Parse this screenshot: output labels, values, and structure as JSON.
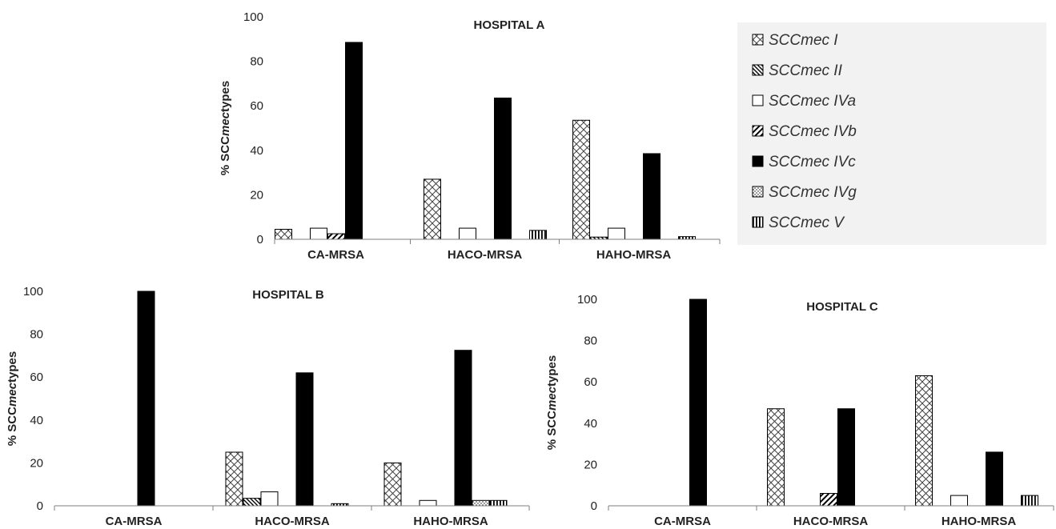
{
  "ylabel": {
    "prefix": "% SCC",
    "italic": "mec",
    "suffix": "types"
  },
  "legend": {
    "items": [
      {
        "label": "SCCmec I",
        "pattern": "wave"
      },
      {
        "label": "SCCmec II",
        "pattern": "diag-dense"
      },
      {
        "label": "SCCmec IVa",
        "pattern": "white"
      },
      {
        "label": "SCCmec IVb",
        "pattern": "diag-wide"
      },
      {
        "label": "SCCmec IVc",
        "pattern": "black"
      },
      {
        "label": "SCCmec IVg",
        "pattern": "dots"
      },
      {
        "label": "SCCmec V",
        "pattern": "vlines"
      }
    ]
  },
  "chart_data": [
    {
      "type": "bar",
      "title": "HOSPITAL A",
      "ylabel": "% SCCmec types",
      "ylim": [
        0,
        100
      ],
      "yticks": [
        0,
        20,
        40,
        60,
        80,
        100
      ],
      "categories": [
        "CA-MRSA",
        "HACO-MRSA",
        "HAHO-MRSA"
      ],
      "series": [
        {
          "name": "SCCmec I",
          "values": [
            4.5,
            27,
            53.5
          ]
        },
        {
          "name": "SCCmec II",
          "values": [
            0,
            0,
            1
          ]
        },
        {
          "name": "SCCmec IVa",
          "values": [
            5,
            5,
            5
          ]
        },
        {
          "name": "SCCmec IVb",
          "values": [
            2.5,
            0,
            0
          ]
        },
        {
          "name": "SCCmec IVc",
          "values": [
            88.5,
            63.5,
            38.5
          ]
        },
        {
          "name": "SCCmec IVg",
          "values": [
            0,
            0,
            0
          ]
        },
        {
          "name": "SCCmec V",
          "values": [
            0,
            4,
            1.2
          ]
        }
      ]
    },
    {
      "type": "bar",
      "title": "HOSPITAL B",
      "ylabel": "% SCCmec types",
      "ylim": [
        0,
        100
      ],
      "yticks": [
        0,
        20,
        40,
        60,
        80,
        100
      ],
      "categories": [
        "CA-MRSA",
        "HACO-MRSA",
        "HAHO-MRSA"
      ],
      "series": [
        {
          "name": "SCCmec I",
          "values": [
            0,
            25,
            20
          ]
        },
        {
          "name": "SCCmec II",
          "values": [
            0,
            3.5,
            0
          ]
        },
        {
          "name": "SCCmec IVa",
          "values": [
            0,
            6.5,
            2.5
          ]
        },
        {
          "name": "SCCmec IVb",
          "values": [
            0,
            0,
            0
          ]
        },
        {
          "name": "SCCmec IVc",
          "values": [
            100,
            62,
            72.5
          ]
        },
        {
          "name": "SCCmec IVg",
          "values": [
            0,
            0,
            2.5
          ]
        },
        {
          "name": "SCCmec V",
          "values": [
            0,
            1,
            2.5
          ]
        }
      ]
    },
    {
      "type": "bar",
      "title": "HOSPITAL C",
      "ylabel": "% SCCmec types",
      "ylim": [
        0,
        100
      ],
      "yticks": [
        0,
        20,
        40,
        60,
        80,
        100
      ],
      "categories": [
        "CA-MRSA",
        "HACO-MRSA",
        "HAHO-MRSA"
      ],
      "series": [
        {
          "name": "SCCmec I",
          "values": [
            0,
            47,
            63
          ]
        },
        {
          "name": "SCCmec II",
          "values": [
            0,
            0,
            0
          ]
        },
        {
          "name": "SCCmec IVa",
          "values": [
            0,
            0,
            5
          ]
        },
        {
          "name": "SCCmec IVb",
          "values": [
            0,
            6,
            0
          ]
        },
        {
          "name": "SCCmec IVc",
          "values": [
            100,
            47,
            26
          ]
        },
        {
          "name": "SCCmec IVg",
          "values": [
            0,
            0,
            0
          ]
        },
        {
          "name": "SCCmec V",
          "values": [
            0,
            0,
            5
          ]
        }
      ]
    }
  ]
}
